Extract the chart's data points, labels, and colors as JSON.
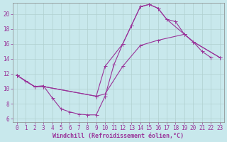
{
  "xlabel": "Windchill (Refroidissement éolien,°C)",
  "background_color": "#c8e8ec",
  "line_color": "#993399",
  "xlim": [
    -0.5,
    23.5
  ],
  "ylim": [
    5.5,
    21.5
  ],
  "yticks": [
    6,
    8,
    10,
    12,
    14,
    16,
    18,
    20
  ],
  "xticks": [
    0,
    1,
    2,
    3,
    4,
    5,
    6,
    7,
    8,
    9,
    10,
    11,
    12,
    13,
    14,
    15,
    16,
    17,
    18,
    19,
    20,
    21,
    22,
    23
  ],
  "series1_x": [
    0,
    1,
    2,
    3,
    4,
    5,
    6,
    7,
    8,
    9,
    10,
    11,
    12,
    13,
    14,
    15,
    16,
    17,
    18,
    19,
    20,
    21,
    22
  ],
  "series1_y": [
    11.8,
    11.0,
    10.3,
    10.4,
    8.8,
    7.3,
    6.9,
    6.6,
    6.5,
    6.5,
    9.0,
    13.2,
    16.0,
    18.5,
    21.0,
    21.3,
    20.8,
    19.3,
    19.0,
    17.3,
    16.3,
    15.0,
    14.2
  ],
  "series2_x": [
    0,
    2,
    3,
    9,
    10,
    12,
    14,
    16,
    19,
    20,
    23
  ],
  "series2_y": [
    11.8,
    10.3,
    10.3,
    9.0,
    9.3,
    13.0,
    15.8,
    16.5,
    17.3,
    16.3,
    14.2
  ],
  "series3_x": [
    0,
    2,
    3,
    9,
    10,
    12,
    13,
    14,
    15,
    16,
    17,
    19,
    20,
    23
  ],
  "series3_y": [
    11.8,
    10.3,
    10.3,
    9.0,
    13.0,
    16.0,
    18.5,
    21.0,
    21.3,
    20.8,
    19.3,
    17.3,
    16.3,
    14.2
  ],
  "grid_color": "#aacccc",
  "tick_fontsize": 5.5,
  "label_fontsize": 6
}
